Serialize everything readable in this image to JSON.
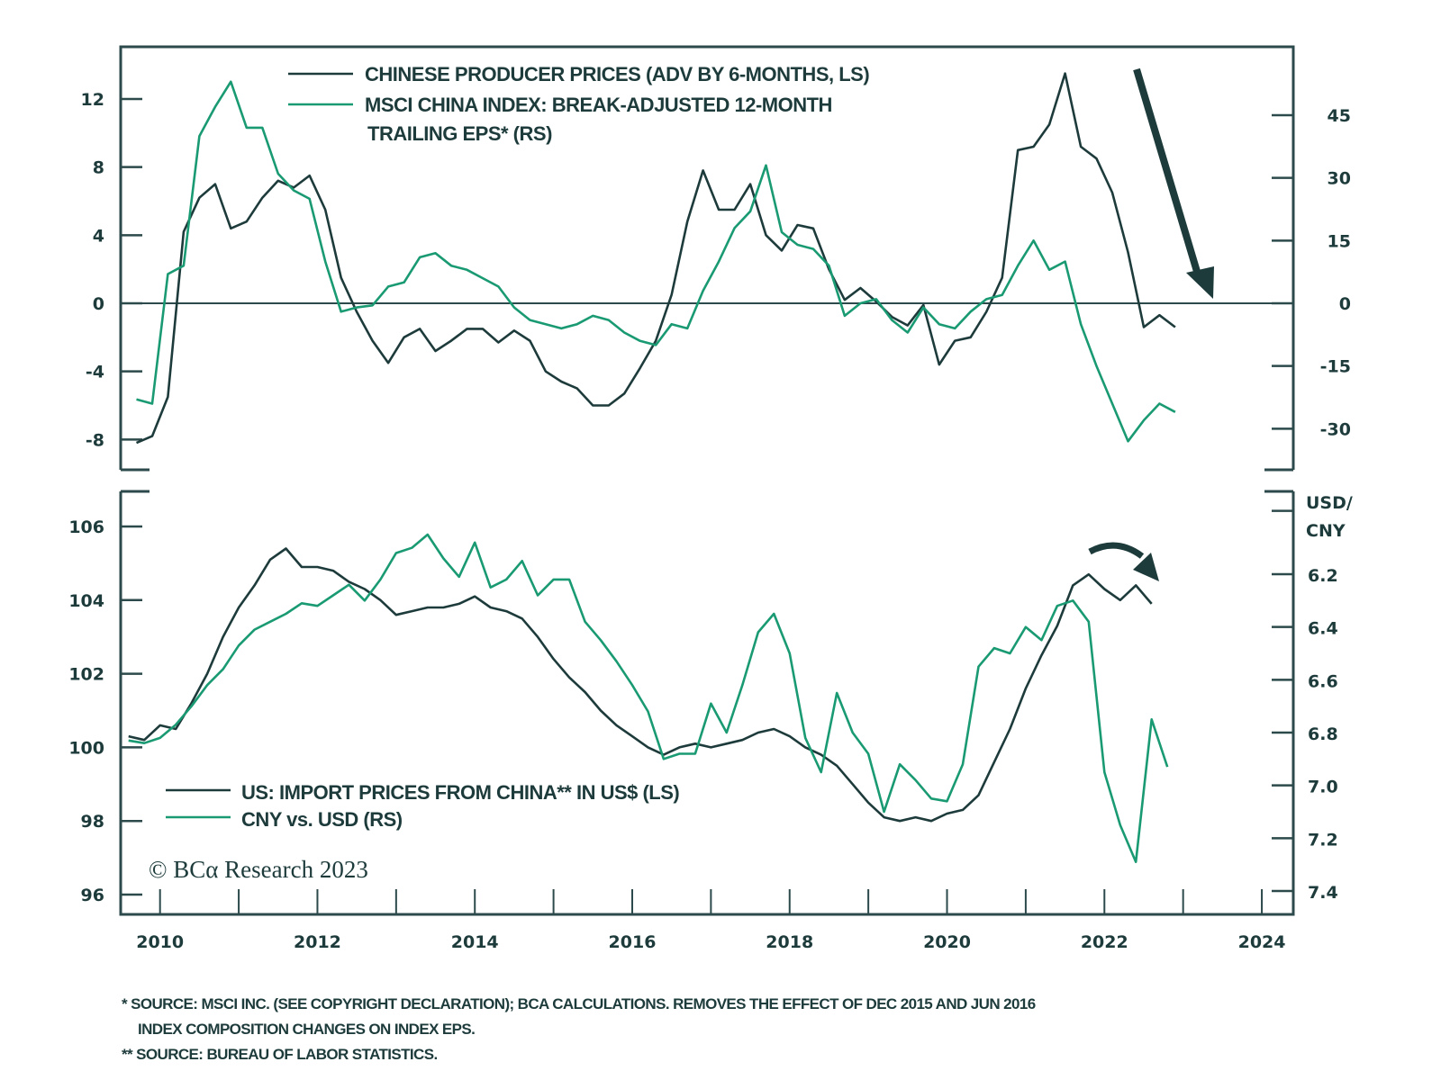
{
  "chart_data": [
    {
      "type": "line",
      "panel": "top",
      "title": "",
      "legend": [
        {
          "label_lines": [
            "CHINESE PRODUCER PRICES (ADV BY 6-MONTHS, LS)"
          ],
          "color": "#1e3b3c"
        },
        {
          "label_lines": [
            "MSCI CHINA INDEX: BREAK-ADJUSTED 12-MONTH",
            "TRAILING EPS* (RS)"
          ],
          "color": "#1a9a72"
        }
      ],
      "legend_placement": "top-center",
      "left_axis": {
        "ticks": [
          "12",
          "8",
          "4",
          "0",
          "-4",
          "-8"
        ],
        "tick_values": [
          12,
          8,
          4,
          0,
          -4,
          -8
        ],
        "range": [
          -10,
          14
        ]
      },
      "right_axis": {
        "ticks": [
          "45",
          "30",
          "15",
          "0",
          "-15",
          "-30"
        ],
        "tick_values": [
          45,
          30,
          15,
          0,
          -15,
          -30
        ],
        "range": [
          -40.5,
          67.5
        ]
      },
      "zero_line": true,
      "annotation": "down-arrow",
      "series": [
        {
          "name": "Chinese Producer Prices (adv 6m, LS)",
          "axis": "left",
          "color": "#1e3b3c",
          "x": [
            2009.7,
            2009.9,
            2010.1,
            2010.3,
            2010.5,
            2010.7,
            2010.9,
            2011.1,
            2011.3,
            2011.5,
            2011.7,
            2011.9,
            2012.1,
            2012.3,
            2012.5,
            2012.7,
            2012.9,
            2013.1,
            2013.3,
            2013.5,
            2013.7,
            2013.9,
            2014.1,
            2014.3,
            2014.5,
            2014.7,
            2014.9,
            2015.1,
            2015.3,
            2015.5,
            2015.7,
            2015.9,
            2016.1,
            2016.3,
            2016.5,
            2016.7,
            2016.9,
            2017.1,
            2017.3,
            2017.5,
            2017.7,
            2017.9,
            2018.1,
            2018.3,
            2018.5,
            2018.7,
            2018.9,
            2019.1,
            2019.3,
            2019.5,
            2019.7,
            2019.9,
            2020.1,
            2020.3,
            2020.5,
            2020.7,
            2020.9,
            2021.1,
            2021.3,
            2021.5,
            2021.7,
            2021.9,
            2022.1,
            2022.3,
            2022.5,
            2022.7,
            2022.9,
            2023.1,
            2023.3
          ],
          "values": [
            -8.2,
            -7.8,
            -5.5,
            4.2,
            6.2,
            7.0,
            4.4,
            4.8,
            6.2,
            7.2,
            6.8,
            7.5,
            5.5,
            1.5,
            -0.5,
            -2.2,
            -3.5,
            -2.0,
            -1.5,
            -2.8,
            -2.2,
            -1.5,
            -1.5,
            -2.3,
            -1.6,
            -2.2,
            -4.0,
            -4.6,
            -5.0,
            -6.0,
            -6.0,
            -5.3,
            -3.8,
            -2.2,
            0.5,
            4.8,
            7.8,
            5.5,
            5.5,
            7.0,
            4.0,
            3.1,
            4.6,
            4.4,
            2.0,
            0.2,
            0.9,
            0.1,
            -0.8,
            -1.3,
            -0.1,
            -3.6,
            -2.2,
            -2.0,
            -0.5,
            1.5,
            9.0,
            9.2,
            10.5,
            13.5,
            9.2,
            8.5,
            6.5,
            3.0,
            -1.4,
            -0.7,
            -1.4,
            null,
            null
          ]
        },
        {
          "name": "MSCI China Index break-adjusted 12m trailing EPS (RS)",
          "axis": "right",
          "color": "#1a9a72",
          "x": [
            2009.7,
            2009.9,
            2010.1,
            2010.3,
            2010.5,
            2010.7,
            2010.9,
            2011.1,
            2011.3,
            2011.5,
            2011.7,
            2011.9,
            2012.1,
            2012.3,
            2012.5,
            2012.7,
            2012.9,
            2013.1,
            2013.3,
            2013.5,
            2013.7,
            2013.9,
            2014.1,
            2014.3,
            2014.5,
            2014.7,
            2014.9,
            2015.1,
            2015.3,
            2015.5,
            2015.7,
            2015.9,
            2016.1,
            2016.3,
            2016.5,
            2016.7,
            2016.9,
            2017.1,
            2017.3,
            2017.5,
            2017.7,
            2017.9,
            2018.1,
            2018.3,
            2018.5,
            2018.7,
            2018.9,
            2019.1,
            2019.3,
            2019.5,
            2019.7,
            2019.9,
            2020.1,
            2020.3,
            2020.5,
            2020.7,
            2020.9,
            2021.1,
            2021.3,
            2021.5,
            2021.7,
            2021.9,
            2022.1,
            2022.3,
            2022.5,
            2022.7,
            2022.9
          ],
          "values": [
            -23,
            -24,
            7,
            9,
            40,
            47,
            53,
            42,
            42,
            31,
            27,
            25,
            10,
            -2,
            -1,
            -0.5,
            4,
            5,
            11,
            12,
            9,
            8,
            6,
            4,
            -1,
            -4,
            -5,
            -6,
            -5,
            -3,
            -4,
            -7,
            -9,
            -10,
            -5,
            -6,
            3,
            10,
            18,
            22,
            33,
            17,
            14,
            13,
            9,
            -3,
            0,
            1,
            -4,
            -7,
            -1,
            -5,
            -6,
            -2,
            1,
            2,
            9,
            15,
            8,
            10,
            -5,
            -15,
            -24,
            -33,
            -28,
            -24,
            -26
          ]
        }
      ]
    },
    {
      "type": "line",
      "panel": "bottom",
      "title": "",
      "legend": [
        {
          "label_lines": [
            "US: IMPORT PRICES FROM CHINA** IN US$ (LS)"
          ],
          "color": "#1e3b3c"
        },
        {
          "label_lines": [
            "CNY vs. USD (RS)"
          ],
          "color": "#1a9a72"
        }
      ],
      "legend_placement": "bottom-left",
      "left_axis": {
        "ticks": [
          "106",
          "104",
          "102",
          "100",
          "98",
          "96"
        ],
        "tick_values": [
          106,
          104,
          102,
          100,
          98,
          96
        ],
        "range": [
          95.5,
          107
        ]
      },
      "right_axis": {
        "label_lines": [
          "USD/",
          "CNY"
        ],
        "inverted": true,
        "ticks": [
          "6.2",
          "6.4",
          "6.6",
          "6.8",
          "7.0",
          "7.2",
          "7.4"
        ],
        "tick_values": [
          6.2,
          6.4,
          6.6,
          6.8,
          7.0,
          7.2,
          7.4
        ],
        "range": [
          5.88,
          7.55
        ]
      },
      "annotation": "curved-down-arrow",
      "series": [
        {
          "name": "US import prices from China (LS)",
          "axis": "left",
          "color": "#1e3b3c",
          "x": [
            2009.6,
            2009.8,
            2010.0,
            2010.2,
            2010.4,
            2010.6,
            2010.8,
            2011.0,
            2011.2,
            2011.4,
            2011.6,
            2011.8,
            2012.0,
            2012.2,
            2012.4,
            2012.6,
            2012.8,
            2013.0,
            2013.2,
            2013.4,
            2013.6,
            2013.8,
            2014.0,
            2014.2,
            2014.4,
            2014.6,
            2014.8,
            2015.0,
            2015.2,
            2015.4,
            2015.6,
            2015.8,
            2016.0,
            2016.2,
            2016.4,
            2016.6,
            2016.8,
            2017.0,
            2017.2,
            2017.4,
            2017.6,
            2017.8,
            2018.0,
            2018.2,
            2018.4,
            2018.6,
            2018.8,
            2019.0,
            2019.2,
            2019.4,
            2019.6,
            2019.8,
            2020.0,
            2020.2,
            2020.4,
            2020.6,
            2020.8,
            2021.0,
            2021.2,
            2021.4,
            2021.6,
            2021.8,
            2022.0,
            2022.2,
            2022.4,
            2022.6
          ],
          "values": [
            100.3,
            100.2,
            100.6,
            100.5,
            101.2,
            102.0,
            103.0,
            103.8,
            104.4,
            105.1,
            105.4,
            104.9,
            104.9,
            104.8,
            104.5,
            104.3,
            104.0,
            103.6,
            103.7,
            103.8,
            103.8,
            103.9,
            104.1,
            103.8,
            103.7,
            103.5,
            103.0,
            102.4,
            101.9,
            101.5,
            101.0,
            100.6,
            100.3,
            100.0,
            99.8,
            100.0,
            100.1,
            100.0,
            100.1,
            100.2,
            100.4,
            100.5,
            100.3,
            100.0,
            99.8,
            99.5,
            99.0,
            98.5,
            98.1,
            98.0,
            98.1,
            98.0,
            98.2,
            98.3,
            98.7,
            99.6,
            100.5,
            101.6,
            102.5,
            103.3,
            104.4,
            104.7,
            104.3,
            104.0,
            104.4,
            103.9
          ]
        },
        {
          "name": "CNY vs USD (RS, inverted)",
          "axis": "right",
          "color": "#1a9a72",
          "x": [
            2009.6,
            2009.8,
            2010.0,
            2010.2,
            2010.4,
            2010.6,
            2010.8,
            2011.0,
            2011.2,
            2011.4,
            2011.6,
            2011.8,
            2012.0,
            2012.2,
            2012.4,
            2012.6,
            2012.8,
            2013.0,
            2013.2,
            2013.4,
            2013.6,
            2013.8,
            2014.0,
            2014.2,
            2014.4,
            2014.6,
            2014.8,
            2015.0,
            2015.2,
            2015.4,
            2015.6,
            2015.8,
            2016.0,
            2016.2,
            2016.4,
            2016.6,
            2016.8,
            2017.0,
            2017.2,
            2017.4,
            2017.6,
            2017.8,
            2018.0,
            2018.2,
            2018.4,
            2018.6,
            2018.8,
            2019.0,
            2019.2,
            2019.4,
            2019.6,
            2019.8,
            2020.0,
            2020.2,
            2020.4,
            2020.6,
            2020.8,
            2021.0,
            2021.2,
            2021.4,
            2021.6,
            2021.8,
            2022.0,
            2022.2,
            2022.4,
            2022.6,
            2022.8
          ],
          "values": [
            6.83,
            6.84,
            6.82,
            6.77,
            6.7,
            6.62,
            6.56,
            6.47,
            6.41,
            6.38,
            6.35,
            6.31,
            6.32,
            6.28,
            6.24,
            6.3,
            6.22,
            6.12,
            6.1,
            6.05,
            6.14,
            6.21,
            6.08,
            6.25,
            6.22,
            6.15,
            6.28,
            6.22,
            6.22,
            6.38,
            6.45,
            6.53,
            6.62,
            6.72,
            6.9,
            6.88,
            6.88,
            6.69,
            6.8,
            6.62,
            6.42,
            6.35,
            6.5,
            6.82,
            6.95,
            6.65,
            6.8,
            6.88,
            7.1,
            6.92,
            6.98,
            7.05,
            7.06,
            6.92,
            6.55,
            6.48,
            6.5,
            6.4,
            6.45,
            6.32,
            6.3,
            6.38,
            6.95,
            7.15,
            7.29,
            6.75,
            6.93
          ]
        }
      ]
    }
  ],
  "x_axis": {
    "ticks": [
      "2010",
      "2012",
      "2014",
      "2016",
      "2018",
      "2020",
      "2022",
      "2024"
    ],
    "tick_values": [
      2010,
      2012,
      2014,
      2016,
      2018,
      2020,
      2022,
      2024
    ],
    "range": [
      2009.5,
      2024.4
    ]
  },
  "copyright": {
    "prefix": "© BC",
    "alpha": "α",
    "suffix": " Research 2023"
  },
  "footnotes": [
    "*  SOURCE: MSCI INC. (SEE COPYRIGHT DECLARATION); BCA CALCULATIONS. REMOVES THE EFFECT OF DEC 2015 AND JUN 2016",
    "    INDEX COMPOSITION CHANGES ON INDEX EPS.",
    "** SOURCE: BUREAU OF LABOR STATISTICS."
  ],
  "colors": {
    "dark": "#1e3b3c",
    "green": "#1a9a72",
    "frame": "#2c4a4b"
  }
}
